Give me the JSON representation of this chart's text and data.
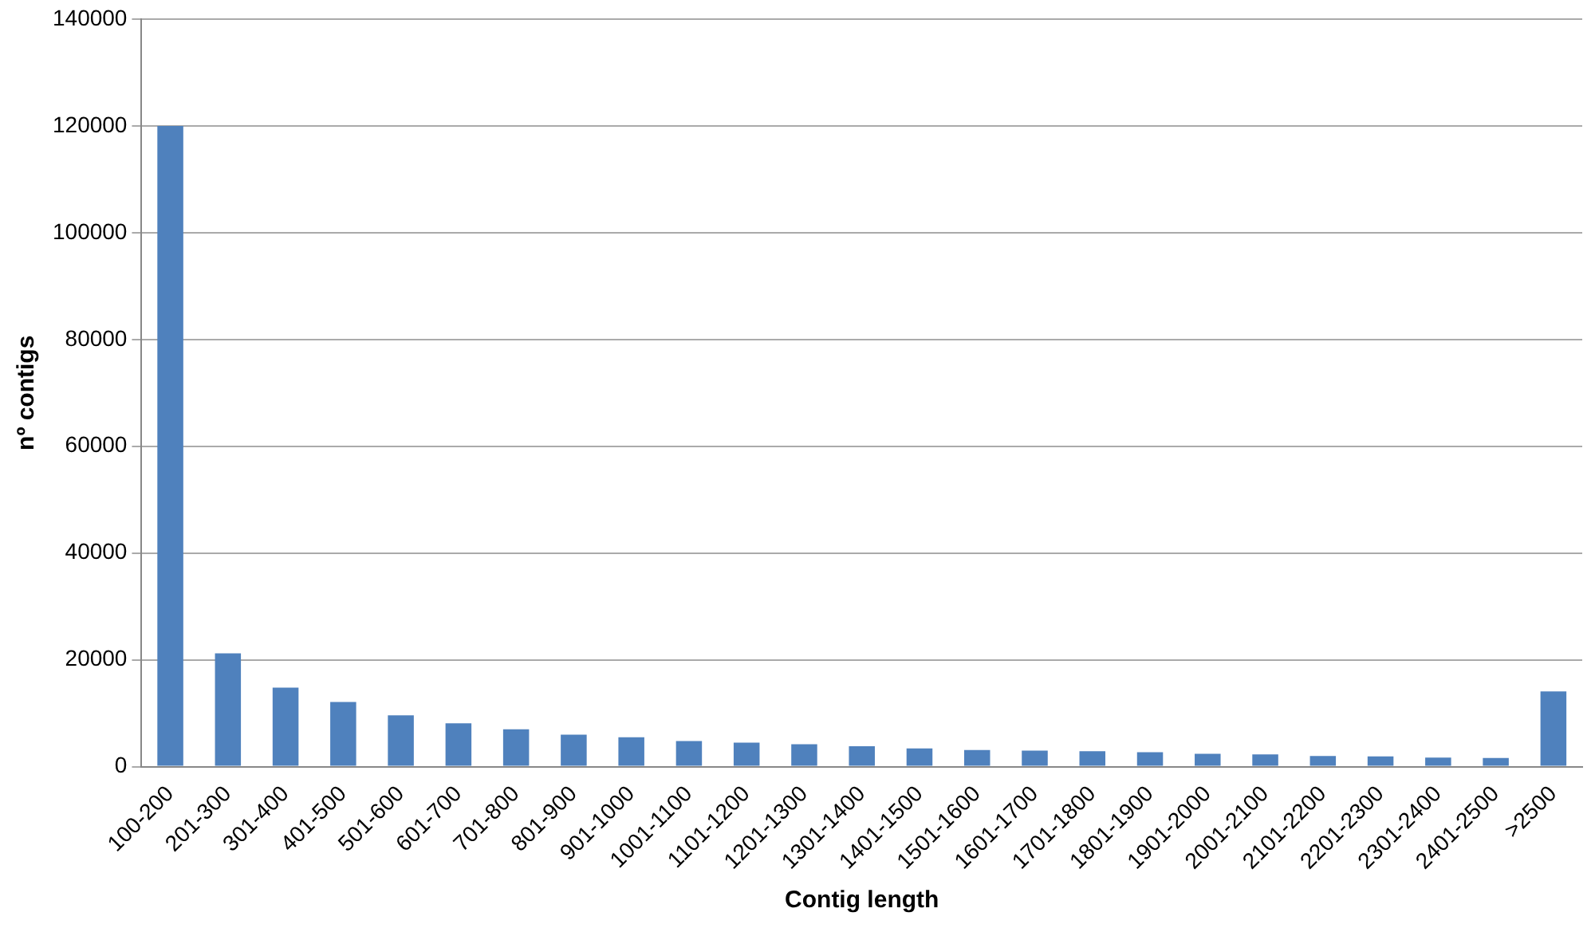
{
  "chart_data": {
    "type": "bar",
    "xlabel": "Contig length",
    "ylabel": "nº contigs",
    "categories": [
      "100-200",
      "201-300",
      "301-400",
      "401-500",
      "501-600",
      "601-700",
      "701-800",
      "801-900",
      "901-1000",
      "1001-1100",
      "1101-1200",
      "1201-1300",
      "1301-1400",
      "1401-1500",
      "1501-1600",
      "1601-1700",
      "1701-1800",
      "1801-1900",
      "1901-2000",
      "2001-2100",
      "2101-2200",
      "2201-2300",
      "2301-2400",
      "2401-2500",
      ">2500"
    ],
    "values": [
      120000,
      21200,
      14800,
      12100,
      9600,
      8100,
      7000,
      6000,
      5500,
      4800,
      4500,
      4200,
      3800,
      3400,
      3100,
      3000,
      2900,
      2700,
      2400,
      2300,
      2000,
      1900,
      1700,
      1600,
      14100
    ],
    "color": "#4f81bd",
    "ylim": [
      0,
      140000
    ],
    "yticks": [
      0,
      20000,
      40000,
      60000,
      80000,
      100000,
      120000,
      140000
    ],
    "grid": "y",
    "legend": false
  }
}
